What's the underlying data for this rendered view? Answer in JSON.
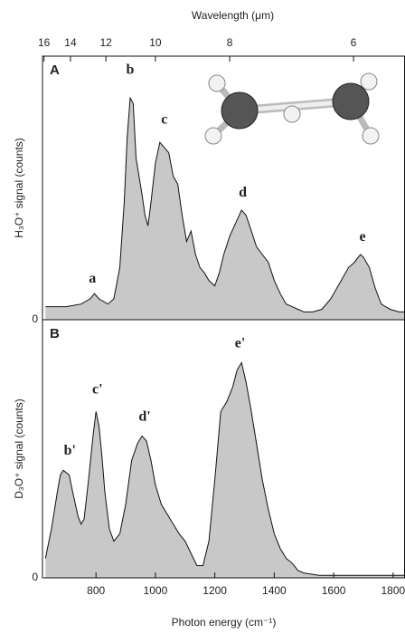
{
  "chart_data": [
    {
      "type": "area",
      "panel": "A",
      "ylabel": "H₃O⁺ signal (counts)",
      "x2label": "Wavelength (μm)",
      "color": "#c8c8c8",
      "line_color": "#111111",
      "xlim": [
        620,
        1840
      ],
      "ylim": [
        0,
        100
      ],
      "yticks": [
        0
      ],
      "x2ticks": [
        16,
        14,
        12,
        10,
        8,
        6
      ],
      "annotations": [
        "a",
        "b",
        "c",
        "d",
        "e"
      ],
      "x": [
        630,
        700,
        750,
        780,
        795,
        810,
        840,
        860,
        880,
        895,
        905,
        915,
        925,
        935,
        945,
        955,
        965,
        975,
        985,
        1000,
        1015,
        1030,
        1045,
        1060,
        1075,
        1090,
        1105,
        1120,
        1135,
        1150,
        1165,
        1180,
        1200,
        1215,
        1230,
        1250,
        1270,
        1290,
        1305,
        1320,
        1340,
        1360,
        1380,
        1400,
        1420,
        1440,
        1460,
        1480,
        1500,
        1530,
        1560,
        1590,
        1620,
        1650,
        1670,
        1690,
        1700,
        1720,
        1740,
        1760,
        1790,
        1820,
        1840
      ],
      "values": [
        5,
        5,
        6,
        8,
        10,
        8,
        6,
        8,
        20,
        45,
        70,
        85,
        83,
        62,
        55,
        48,
        40,
        36,
        45,
        60,
        68,
        66,
        64,
        55,
        52,
        40,
        30,
        34,
        25,
        20,
        18,
        15,
        13,
        18,
        25,
        32,
        37,
        42,
        40,
        35,
        28,
        25,
        22,
        15,
        10,
        6,
        5,
        4,
        3,
        3,
        4,
        8,
        14,
        20,
        22,
        25,
        24,
        20,
        12,
        6,
        4,
        3,
        3
      ]
    },
    {
      "type": "area",
      "panel": "B",
      "ylabel": "D₃O⁺ signal (counts)",
      "xlabel": "Photon energy (cm⁻¹)",
      "color": "#c8c8c8",
      "line_color": "#111111",
      "xlim": [
        620,
        1840
      ],
      "ylim": [
        0,
        100
      ],
      "yticks": [
        0
      ],
      "xticks": [
        800,
        1000,
        1200,
        1400,
        1600,
        1800
      ],
      "annotations": [
        "b'",
        "c'",
        "d'",
        "e'"
      ],
      "x": [
        630,
        650,
        670,
        680,
        690,
        700,
        710,
        720,
        740,
        750,
        760,
        775,
        790,
        800,
        810,
        820,
        830,
        845,
        860,
        880,
        900,
        920,
        940,
        955,
        970,
        985,
        1000,
        1020,
        1040,
        1060,
        1080,
        1100,
        1120,
        1140,
        1160,
        1180,
        1200,
        1220,
        1240,
        1260,
        1275,
        1290,
        1305,
        1320,
        1340,
        1360,
        1380,
        1400,
        1420,
        1440,
        1460,
        1480,
        1500,
        1550,
        1600,
        1700,
        1800,
        1840
      ],
      "values": [
        8,
        20,
        35,
        42,
        44,
        43,
        42,
        36,
        25,
        22,
        24,
        40,
        58,
        68,
        62,
        50,
        35,
        20,
        15,
        18,
        30,
        48,
        55,
        58,
        56,
        48,
        38,
        30,
        26,
        22,
        18,
        15,
        10,
        5,
        5,
        15,
        40,
        68,
        72,
        78,
        85,
        88,
        80,
        70,
        55,
        40,
        28,
        18,
        12,
        8,
        6,
        3,
        2,
        1,
        1,
        1,
        1,
        1
      ]
    }
  ]
}
